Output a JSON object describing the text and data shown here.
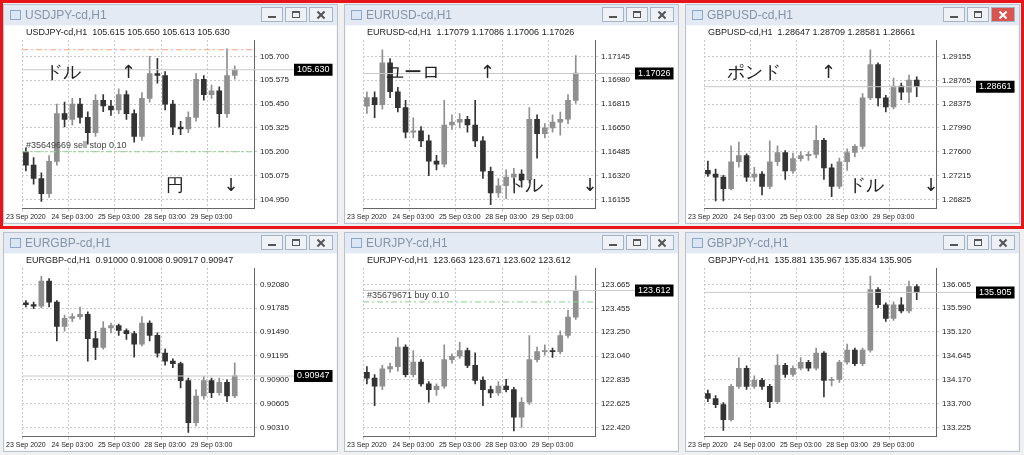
{
  "chart_data": [
    {
      "type": "candlestick",
      "title": "USDJPY-cd,H1",
      "subtitle": "USDJPY-cd,H1  105.615 105.650 105.613 105.630",
      "grid": true,
      "colors": [
        "#333333",
        "#333333",
        "#333333",
        "#8f8f8f",
        "#8f8f8f",
        "#333333",
        "#8f8f8f",
        "#333333",
        "#333333",
        "#8f8f8f",
        "#333333",
        "#333333",
        "#8f8f8f",
        "#333333",
        "#333333",
        "#8f8f8f",
        "#8f8f8f",
        "#333333",
        "#333333",
        "#333333",
        "#333333",
        "#8f8f8f",
        "#8f8f8f",
        "#333333",
        "#8f8f8f",
        "#333333",
        "#8f8f8f",
        "#8f8f8f",
        null,
        null
      ],
      "categories": [
        "23 Sep 2020",
        null,
        null,
        null,
        null,
        null,
        "24 Sep 03:00",
        null,
        null,
        null,
        null,
        null,
        "25 Sep 03:00",
        null,
        null,
        null,
        null,
        null,
        "28 Sep 03:00",
        null,
        null,
        null,
        null,
        null,
        "29 Sep 03:00",
        null,
        null,
        null,
        null,
        null
      ],
      "ohlc": [
        [
          105.2,
          105.22,
          105.1,
          105.13
        ],
        [
          105.13,
          105.17,
          105.03,
          105.06
        ],
        [
          105.06,
          105.09,
          104.94,
          104.98
        ],
        [
          104.98,
          105.18,
          104.96,
          105.15
        ],
        [
          105.15,
          105.45,
          105.13,
          105.4
        ],
        [
          105.4,
          105.46,
          105.33,
          105.37
        ],
        [
          105.37,
          105.48,
          105.34,
          105.45
        ],
        [
          105.45,
          105.48,
          105.35,
          105.38
        ],
        [
          105.38,
          105.41,
          105.24,
          105.3
        ],
        [
          105.3,
          105.5,
          105.28,
          105.47
        ],
        [
          105.47,
          105.5,
          105.41,
          105.44
        ],
        [
          105.44,
          105.47,
          105.39,
          105.42
        ],
        [
          105.42,
          105.53,
          105.4,
          105.5
        ],
        [
          105.5,
          105.52,
          105.37,
          105.4
        ],
        [
          105.4,
          105.42,
          105.25,
          105.28
        ],
        [
          105.28,
          105.51,
          105.26,
          105.48
        ],
        [
          105.48,
          105.7,
          105.46,
          105.61
        ],
        [
          105.61,
          105.69,
          105.56,
          105.6
        ],
        [
          105.6,
          105.62,
          105.42,
          105.45
        ],
        [
          105.45,
          105.47,
          105.29,
          105.33
        ],
        [
          105.33,
          105.36,
          105.29,
          105.32
        ],
        [
          105.32,
          105.41,
          105.3,
          105.38
        ],
        [
          105.38,
          105.61,
          105.36,
          105.58
        ],
        [
          105.58,
          105.6,
          105.47,
          105.5
        ],
        [
          105.5,
          105.55,
          105.48,
          105.52
        ],
        [
          105.52,
          105.54,
          105.33,
          105.4
        ],
        [
          105.4,
          105.74,
          105.38,
          105.6
        ],
        [
          105.6,
          105.65,
          105.58,
          105.63
        ],
        null,
        null
      ],
      "ylim": [
        104.902,
        105.786
      ],
      "yticks": [
        {
          "value": 104.95,
          "label": "104.950"
        },
        105.075,
        {
          "value": 105.2,
          "label": "105.200"
        },
        105.325,
        {
          "value": 105.45,
          "label": "105.450"
        },
        105.575,
        {
          "value": 105.7,
          "label": "105.700"
        }
      ],
      "ref_lines": [
        {
          "axis": "y",
          "value": 105.735,
          "color": "#f4a582",
          "line_style": "dashed"
        },
        {
          "axis": "y",
          "value": 105.2,
          "label": "#35649669 sell stop 0.10",
          "color": "#8fd18f",
          "line_style": "dashed"
        },
        {
          "axis": "y",
          "value": 105.63,
          "label": "105.630",
          "color": "#c8c8c8",
          "line_style": "solid"
        }
      ],
      "annotations": [
        "ドル ↑",
        "円 ↓"
      ]
    },
    {
      "type": "candlestick",
      "title": "EURUSD-cd,H1",
      "subtitle": "EURUSD-cd,H1  1.17079 1.17086 1.17006 1.17026",
      "grid": true,
      "colors": [
        "#8f8f8f",
        "#333333",
        "#8f8f8f",
        "#333333",
        "#333333",
        "#333333",
        "#8f8f8f",
        "#333333",
        "#333333",
        "#333333",
        "#8f8f8f",
        "#8f8f8f",
        "#8f8f8f",
        "#333333",
        "#333333",
        "#333333",
        "#333333",
        "#8f8f8f",
        "#8f8f8f",
        "#8f8f8f",
        "#333333",
        "#8f8f8f",
        "#333333",
        "#8f8f8f",
        "#8f8f8f",
        "#8f8f8f",
        "#8f8f8f",
        "#8f8f8f",
        null,
        null
      ],
      "categories": [
        "23 Sep 2020",
        null,
        null,
        null,
        null,
        null,
        "24 Sep 03:00",
        null,
        null,
        null,
        null,
        null,
        "25 Sep 03:00",
        null,
        null,
        null,
        null,
        null,
        "28 Sep 03:00",
        null,
        null,
        null,
        null,
        null,
        "29 Sep 03:00",
        null,
        null,
        null,
        null,
        null
      ],
      "ohlc": [
        [
          1.168,
          1.169,
          1.1675,
          1.1686
        ],
        [
          1.1686,
          1.169,
          1.1672,
          1.1681
        ],
        [
          1.1681,
          1.1719,
          1.1678,
          1.171
        ],
        [
          1.171,
          1.1713,
          1.1686,
          1.169
        ],
        [
          1.169,
          1.1693,
          1.1676,
          1.1679
        ],
        [
          1.1679,
          1.1684,
          1.1658,
          1.1662
        ],
        [
          1.1662,
          1.1672,
          1.1658,
          1.1663
        ],
        [
          1.1663,
          1.1666,
          1.1652,
          1.1656
        ],
        [
          1.1656,
          1.166,
          1.1632,
          1.1642
        ],
        [
          1.1642,
          1.1646,
          1.1636,
          1.164
        ],
        [
          1.164,
          1.1684,
          1.1638,
          1.1667
        ],
        [
          1.1667,
          1.1674,
          1.1664,
          1.1669
        ],
        [
          1.1669,
          1.1675,
          1.1665,
          1.1671
        ],
        [
          1.1671,
          1.1673,
          1.1662,
          1.1667
        ],
        [
          1.1667,
          1.1684,
          1.1652,
          1.1656
        ],
        [
          1.1656,
          1.1659,
          1.163,
          1.1635
        ],
        [
          1.1635,
          1.1638,
          1.1612,
          1.162
        ],
        [
          1.162,
          1.163,
          1.1617,
          1.1625
        ],
        [
          1.1625,
          1.1636,
          1.1616,
          1.1631
        ],
        [
          1.1631,
          1.1637,
          1.1627,
          1.1633
        ],
        [
          1.1633,
          1.1636,
          1.1624,
          1.1629
        ],
        [
          1.1629,
          1.1679,
          1.1627,
          1.1671
        ],
        [
          1.1671,
          1.1674,
          1.1644,
          1.1661
        ],
        [
          1.1661,
          1.1668,
          1.1658,
          1.1665
        ],
        [
          1.1665,
          1.1674,
          1.1662,
          1.1669
        ],
        [
          1.1669,
          1.1676,
          1.166,
          1.1671
        ],
        [
          1.1671,
          1.1688,
          1.1668,
          1.1684
        ],
        [
          1.1684,
          1.1715,
          1.1682,
          1.1703
        ],
        null,
        null
      ],
      "ylim": [
        1.16092,
        1.17258
      ],
      "yticks": [
        1.16155,
        {
          "value": 1.1632,
          "label": "1.16320"
        },
        1.16485,
        {
          "value": 1.1665,
          "label": "1.16650"
        },
        1.16815,
        {
          "value": 1.1698,
          "label": "1.16980"
        },
        1.17145
      ],
      "ref_lines": [
        {
          "axis": "y",
          "value": 1.17026,
          "label": "1.17026",
          "color": "#c8c8c8",
          "line_style": "solid"
        }
      ],
      "annotations": [
        "ユーロ ↑",
        "ドル ↓"
      ]
    },
    {
      "type": "candlestick",
      "title": "GBPUSD-cd,H1",
      "subtitle": "GBPUSD-cd,H1  1.28647 1.28709 1.28581 1.28661",
      "grid": true,
      "colors": [
        "#333333",
        "#333333",
        "#333333",
        "#8f8f8f",
        "#8f8f8f",
        "#333333",
        "#8f8f8f",
        "#333333",
        "#8f8f8f",
        "#8f8f8f",
        "#333333",
        "#8f8f8f",
        "#8f8f8f",
        "#8f8f8f",
        "#8f8f8f",
        "#333333",
        "#333333",
        "#8f8f8f",
        "#8f8f8f",
        "#8f8f8f",
        "#8f8f8f",
        "#8f8f8f",
        "#333333",
        "#333333",
        "#8f8f8f",
        "#333333",
        "#8f8f8f",
        "#333333",
        null,
        null
      ],
      "categories": [
        "23 Sep 2020",
        null,
        null,
        null,
        null,
        null,
        "24 Sep 03:00",
        null,
        null,
        null,
        null,
        null,
        "25 Sep 03:00",
        null,
        null,
        null,
        null,
        null,
        "28 Sep 03:00",
        null,
        null,
        null,
        null,
        null,
        "29 Sep 03:00",
        null,
        null,
        null,
        null,
        null
      ],
      "ohlc": [
        [
          1.273,
          1.2745,
          1.272,
          1.2724
        ],
        [
          1.2724,
          1.2732,
          1.268,
          1.2719
        ],
        [
          1.2719,
          1.2722,
          1.268,
          1.27
        ],
        [
          1.27,
          1.277,
          1.2698,
          1.2744
        ],
        [
          1.2744,
          1.2776,
          1.2735,
          1.2754
        ],
        [
          1.2754,
          1.2757,
          1.2712,
          1.2719
        ],
        [
          1.2719,
          1.2735,
          1.2712,
          1.2724
        ],
        [
          1.2724,
          1.2728,
          1.269,
          1.2704
        ],
        [
          1.2704,
          1.2778,
          1.27,
          1.2744
        ],
        [
          1.2744,
          1.277,
          1.2738,
          1.2759
        ],
        [
          1.2759,
          1.2762,
          1.2715,
          1.2729
        ],
        [
          1.2729,
          1.2758,
          1.2725,
          1.2749
        ],
        [
          1.2749,
          1.276,
          1.2745,
          1.2754
        ],
        [
          1.2754,
          1.276,
          1.2746,
          1.2756
        ],
        [
          1.2756,
          1.2803,
          1.275,
          1.2779
        ],
        [
          1.2779,
          1.2782,
          1.2715,
          1.2734
        ],
        [
          1.2734,
          1.274,
          1.2687,
          1.2704
        ],
        [
          1.2704,
          1.275,
          1.27,
          1.2744
        ],
        [
          1.2744,
          1.2765,
          1.273,
          1.2759
        ],
        [
          1.2759,
          1.2772,
          1.2752,
          1.2769
        ],
        [
          1.2769,
          1.2855,
          1.2765,
          1.2848
        ],
        [
          1.2848,
          1.2926,
          1.2845,
          1.2902
        ],
        [
          1.2902,
          1.2905,
          1.2835,
          1.2848
        ],
        [
          1.2848,
          1.2852,
          1.2825,
          1.2833
        ],
        [
          1.2833,
          1.288,
          1.283,
          1.2867
        ],
        [
          1.2867,
          1.2872,
          1.2845,
          1.2857
        ],
        [
          1.2857,
          1.2885,
          1.284,
          1.2877
        ],
        [
          1.2877,
          1.2882,
          1.285,
          1.2866
        ],
        null,
        null
      ],
      "ylim": [
        1.26677,
        1.29421
      ],
      "yticks": [
        1.26825,
        1.27215,
        {
          "value": 1.276,
          "label": "1.27600"
        },
        {
          "value": 1.2799,
          "label": "1.27990"
        },
        1.28375,
        1.28765,
        1.29155
      ],
      "ref_lines": [
        {
          "axis": "y",
          "value": 1.28661,
          "label": "1.28661",
          "color": "#c8c8c8",
          "line_style": "solid"
        }
      ],
      "annotations": [
        "ポンド ↑",
        "ドル ↓"
      ]
    },
    {
      "type": "candlestick",
      "title": "EURGBP-cd,H1",
      "subtitle": "EURGBP-cd,H1  0.91000 0.91008 0.90917 0.90947",
      "grid": true,
      "colors": [
        "#333333",
        "#333333",
        "#8f8f8f",
        "#333333",
        "#333333",
        "#8f8f8f",
        "#8f8f8f",
        "#8f8f8f",
        "#333333",
        "#333333",
        "#8f8f8f",
        "#8f8f8f",
        "#333333",
        "#333333",
        "#333333",
        "#8f8f8f",
        "#333333",
        "#333333",
        "#333333",
        "#333333",
        "#333333",
        "#333333",
        "#8f8f8f",
        "#8f8f8f",
        "#333333",
        "#8f8f8f",
        "#333333",
        "#8f8f8f",
        null,
        null
      ],
      "categories": [
        "23 Sep 2020",
        null,
        null,
        null,
        null,
        null,
        "24 Sep 03:00",
        null,
        null,
        null,
        null,
        null,
        "25 Sep 03:00",
        null,
        null,
        null,
        null,
        null,
        "28 Sep 03:00",
        null,
        null,
        null,
        null,
        null,
        "29 Sep 03:00",
        null,
        null,
        null,
        null,
        null
      ],
      "ohlc": [
        [
          0.9185,
          0.9188,
          0.918,
          0.9183
        ],
        [
          0.9183,
          0.9186,
          0.9178,
          0.9181
        ],
        [
          0.9181,
          0.9218,
          0.9179,
          0.9212
        ],
        [
          0.9212,
          0.9215,
          0.918,
          0.9186
        ],
        [
          0.9186,
          0.9188,
          0.9138,
          0.9156
        ],
        [
          0.9156,
          0.917,
          0.915,
          0.9166
        ],
        [
          0.9166,
          0.9172,
          0.9162,
          0.9168
        ],
        [
          0.9168,
          0.918,
          0.9165,
          0.9171
        ],
        [
          0.9171,
          0.9174,
          0.9113,
          0.9141
        ],
        [
          0.9141,
          0.915,
          0.9115,
          0.913
        ],
        [
          0.913,
          0.9162,
          0.9128,
          0.9154
        ],
        [
          0.9154,
          0.916,
          0.9148,
          0.9157
        ],
        [
          0.9157,
          0.9159,
          0.9145,
          0.9151
        ],
        [
          0.9151,
          0.9153,
          0.914,
          0.9147
        ],
        [
          0.9147,
          0.915,
          0.9118,
          0.9134
        ],
        [
          0.9134,
          0.9168,
          0.9132,
          0.916
        ],
        [
          0.916,
          0.9163,
          0.9138,
          0.9145
        ],
        [
          0.9145,
          0.9148,
          0.9118,
          0.9123
        ],
        [
          0.9123,
          0.9128,
          0.9108,
          0.9113
        ],
        [
          0.9113,
          0.9116,
          0.9105,
          0.911
        ],
        [
          0.911,
          0.9112,
          0.908,
          0.9089
        ],
        [
          0.9089,
          0.9092,
          0.9025,
          0.9037
        ],
        [
          0.9037,
          0.9078,
          0.9033,
          0.907
        ],
        [
          0.907,
          0.9094,
          0.9066,
          0.9089
        ],
        [
          0.9089,
          0.9092,
          0.9068,
          0.9074
        ],
        [
          0.9074,
          0.9092,
          0.9071,
          0.9087
        ],
        [
          0.9087,
          0.909,
          0.9063,
          0.907
        ],
        [
          0.907,
          0.9111,
          0.9068,
          0.9095
        ],
        null,
        null
      ],
      "ylim": [
        0.90198,
        0.92282
      ],
      "yticks": [
        {
          "value": 0.9031,
          "label": "0.90310"
        },
        0.90605,
        {
          "value": 0.909,
          "label": "0.90900"
        },
        0.91195,
        {
          "value": 0.9149,
          "label": "0.91490"
        },
        0.91785,
        {
          "value": 0.9208,
          "label": "0.92080"
        }
      ],
      "ref_lines": [
        {
          "axis": "y",
          "value": 0.90947,
          "label": "0.90947",
          "color": "#c8c8c8",
          "line_style": "solid"
        }
      ]
    },
    {
      "type": "candlestick",
      "title": "EURJPY-cd,H1",
      "subtitle": "EURJPY-cd,H1  123.663 123.671 123.602 123.612",
      "grid": true,
      "colors": [
        "#333333",
        "#333333",
        "#8f8f8f",
        "#8f8f8f",
        "#8f8f8f",
        "#333333",
        "#8f8f8f",
        "#333333",
        "#333333",
        "#8f8f8f",
        "#8f8f8f",
        "#8f8f8f",
        "#8f8f8f",
        "#333333",
        "#333333",
        "#333333",
        "#333333",
        "#8f8f8f",
        "#333333",
        "#333333",
        "#8f8f8f",
        "#8f8f8f",
        "#8f8f8f",
        "#8f8f8f",
        "#333333",
        "#8f8f8f",
        "#8f8f8f",
        "#8f8f8f",
        null,
        null
      ],
      "categories": [
        "23 Sep 2020",
        null,
        null,
        null,
        null,
        null,
        "24 Sep 03:00",
        null,
        null,
        null,
        null,
        null,
        "25 Sep 03:00",
        null,
        null,
        null,
        null,
        null,
        "28 Sep 03:00",
        null,
        null,
        null,
        null,
        null,
        "29 Sep 03:00",
        null,
        null,
        null,
        null,
        null
      ],
      "ohlc": [
        [
          122.9,
          122.95,
          122.8,
          122.85
        ],
        [
          122.85,
          122.88,
          122.61,
          122.78
        ],
        [
          122.78,
          122.96,
          122.75,
          122.93
        ],
        [
          122.93,
          122.98,
          122.9,
          122.95
        ],
        [
          122.95,
          123.2,
          122.91,
          123.12
        ],
        [
          123.12,
          123.14,
          122.86,
          122.88
        ],
        [
          122.88,
          123.09,
          122.86,
          122.99
        ],
        [
          122.99,
          123.01,
          122.78,
          122.8
        ],
        [
          122.8,
          122.82,
          122.64,
          122.75
        ],
        [
          122.75,
          122.8,
          122.7,
          122.78
        ],
        [
          122.78,
          123.14,
          122.76,
          123.01
        ],
        [
          123.01,
          123.06,
          122.98,
          123.04
        ],
        [
          123.04,
          123.16,
          123.02,
          123.09
        ],
        [
          123.09,
          123.11,
          122.94,
          122.96
        ],
        [
          122.96,
          123.07,
          122.8,
          122.83
        ],
        [
          122.83,
          122.86,
          122.61,
          122.75
        ],
        [
          122.75,
          122.78,
          122.68,
          122.72
        ],
        [
          122.72,
          122.82,
          122.7,
          122.78
        ],
        [
          122.78,
          122.84,
          122.73,
          122.75
        ],
        [
          122.75,
          122.77,
          122.39,
          122.51
        ],
        [
          122.51,
          122.68,
          122.42,
          122.64
        ],
        [
          122.64,
          123.22,
          122.62,
          123.01
        ],
        [
          123.01,
          123.12,
          122.99,
          123.08
        ],
        [
          123.08,
          123.14,
          123.05,
          123.09
        ],
        [
          123.09,
          123.11,
          123.03,
          123.08
        ],
        [
          123.08,
          123.26,
          123.06,
          123.22
        ],
        [
          123.22,
          123.44,
          123.2,
          123.38
        ],
        [
          123.38,
          123.74,
          123.36,
          123.61
        ],
        null,
        null
      ],
      "ylim": [
        122.341,
        123.807
      ],
      "yticks": [
        {
          "value": 122.42,
          "label": "122.420"
        },
        122.625,
        122.835,
        {
          "value": 123.04,
          "label": "123.040"
        },
        {
          "value": 123.25,
          "label": "123.250"
        },
        123.455,
        123.665
      ],
      "ref_lines": [
        {
          "axis": "y",
          "value": 123.512,
          "label": "#35679671 buy 0.10",
          "color": "#8fd18f",
          "line_style": "dashed"
        },
        {
          "axis": "y",
          "value": 123.612,
          "label": "123.612",
          "color": "#c8c8c8",
          "line_style": "solid"
        }
      ]
    },
    {
      "type": "candlestick",
      "title": "GBPJPY-cd,H1",
      "subtitle": "GBPJPY-cd,H1  135.881 135.967 135.834 135.905",
      "grid": true,
      "colors": [
        "#333333",
        "#333333",
        "#333333",
        "#8f8f8f",
        "#8f8f8f",
        "#333333",
        "#8f8f8f",
        "#333333",
        "#333333",
        "#8f8f8f",
        "#333333",
        "#8f8f8f",
        "#8f8f8f",
        "#333333",
        "#8f8f8f",
        "#333333",
        "#8f8f8f",
        "#8f8f8f",
        "#8f8f8f",
        "#333333",
        "#8f8f8f",
        "#8f8f8f",
        "#333333",
        "#333333",
        "#8f8f8f",
        "#333333",
        "#8f8f8f",
        "#333333",
        null,
        null
      ],
      "categories": [
        "23 Sep 2020",
        null,
        null,
        null,
        null,
        null,
        "24 Sep 03:00",
        null,
        null,
        null,
        null,
        null,
        "25 Sep 03:00",
        null,
        null,
        null,
        null,
        null,
        "28 Sep 03:00",
        null,
        null,
        null,
        null,
        null,
        "29 Sep 03:00",
        null,
        null,
        null,
        null,
        null
      ],
      "ohlc": [
        [
          133.9,
          133.97,
          133.74,
          133.8
        ],
        [
          133.8,
          133.86,
          133.62,
          133.68
        ],
        [
          133.68,
          133.72,
          133.17,
          133.38
        ],
        [
          133.38,
          134.08,
          133.35,
          134.04
        ],
        [
          134.04,
          134.61,
          134.0,
          134.4
        ],
        [
          134.4,
          134.45,
          133.98,
          134.04
        ],
        [
          134.04,
          134.25,
          134.0,
          134.16
        ],
        [
          134.16,
          134.2,
          133.98,
          134.04
        ],
        [
          134.04,
          134.08,
          133.62,
          133.74
        ],
        [
          133.74,
          134.67,
          133.7,
          134.46
        ],
        [
          134.46,
          134.5,
          134.22,
          134.28
        ],
        [
          134.28,
          134.45,
          134.24,
          134.4
        ],
        [
          134.4,
          134.61,
          134.37,
          134.52
        ],
        [
          134.52,
          134.56,
          134.35,
          134.4
        ],
        [
          134.4,
          134.8,
          134.37,
          134.7
        ],
        [
          134.7,
          134.73,
          133.83,
          134.16
        ],
        [
          134.16,
          134.22,
          134.05,
          134.18
        ],
        [
          134.18,
          134.56,
          134.12,
          134.52
        ],
        [
          134.52,
          134.88,
          134.48,
          134.76
        ],
        [
          134.76,
          134.8,
          134.45,
          134.49
        ],
        [
          134.49,
          134.8,
          134.45,
          134.76
        ],
        [
          134.76,
          136.23,
          134.72,
          135.96
        ],
        [
          135.96,
          136.0,
          135.6,
          135.66
        ],
        [
          135.66,
          135.7,
          135.33,
          135.39
        ],
        [
          135.39,
          135.72,
          135.35,
          135.66
        ],
        [
          135.66,
          135.8,
          135.5,
          135.54
        ],
        [
          135.54,
          136.13,
          135.5,
          136.02
        ],
        [
          136.02,
          136.06,
          135.76,
          135.9
        ],
        null,
        null
      ],
      "ylim": [
        133.045,
        136.389
      ],
      "yticks": [
        133.225,
        {
          "value": 133.7,
          "label": "133.700"
        },
        {
          "value": 134.17,
          "label": "134.170"
        },
        134.645,
        {
          "value": 135.12,
          "label": "135.120"
        },
        {
          "value": 135.59,
          "label": "135.590"
        },
        136.065
      ],
      "ref_lines": [
        {
          "axis": "y",
          "value": 135.905,
          "label": "135.905",
          "color": "#c8c8c8",
          "line_style": "solid"
        }
      ]
    }
  ]
}
